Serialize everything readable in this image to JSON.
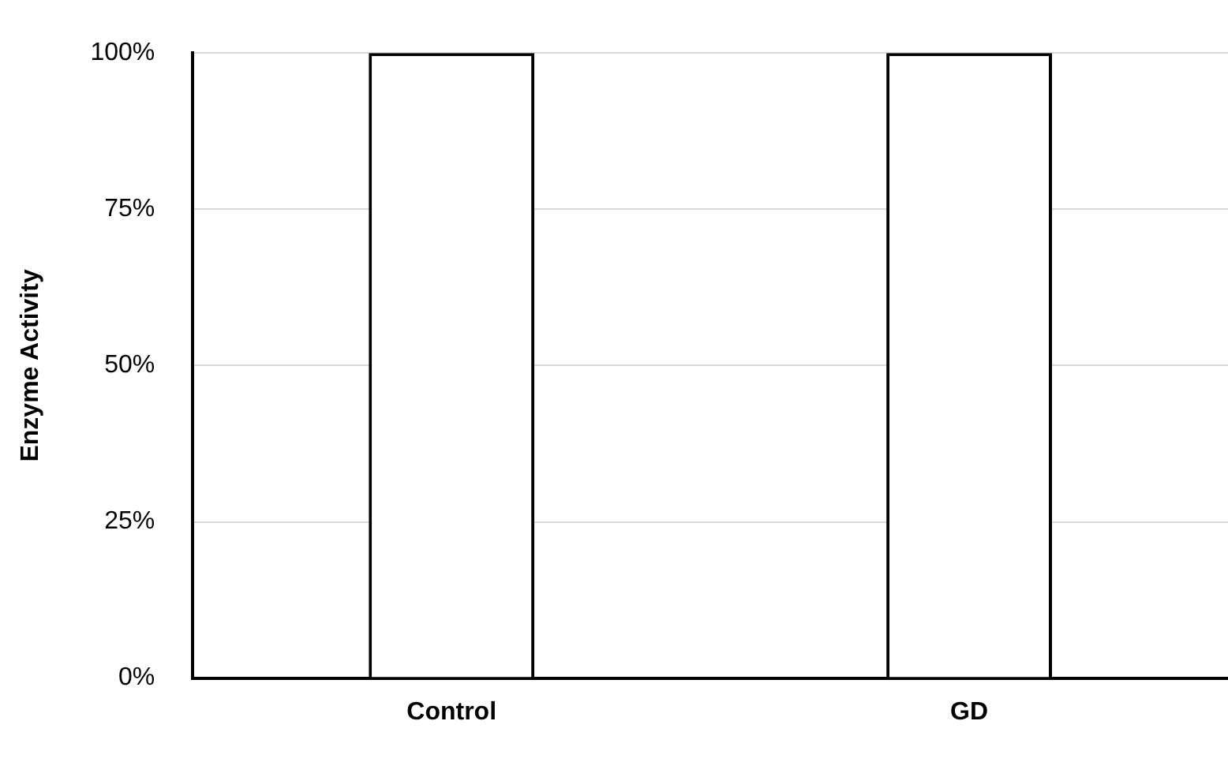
{
  "chart_data": {
    "type": "bar",
    "ylabel": "Enzyme Activity",
    "categories": [
      "Control",
      "GD"
    ],
    "values": [
      100,
      100
    ],
    "color": "#000000",
    "ylim": [
      0,
      100
    ],
    "yticks": [
      {
        "value": 0,
        "label": "0%"
      },
      {
        "value": 25,
        "label": "25%"
      },
      {
        "value": 50,
        "label": "50%"
      },
      {
        "value": 75,
        "label": "75%"
      },
      {
        "value": 100,
        "label": "100%"
      }
    ],
    "grid": "y",
    "legend": false
  }
}
